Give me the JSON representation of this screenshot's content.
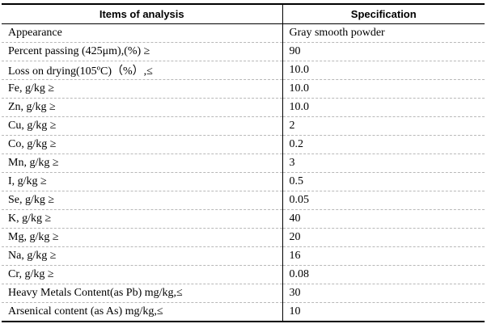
{
  "table": {
    "headers": {
      "item": "Items of analysis",
      "spec": "Specification"
    },
    "rows": [
      {
        "item": "Appearance",
        "spec": "Gray smooth powder"
      },
      {
        "item": "Percent passing (425μm),(%) ≥",
        "spec": "90"
      },
      {
        "item": "Loss on drying(105ºC)（%）,≤",
        "spec": "10.0"
      },
      {
        "item": "Fe, g/kg ≥",
        "spec": "10.0"
      },
      {
        "item": "Zn, g/kg ≥",
        "spec": "10.0"
      },
      {
        "item": "Cu, g/kg ≥",
        "spec": "2"
      },
      {
        "item": "Co, g/kg ≥",
        "spec": "0.2"
      },
      {
        "item": "Mn, g/kg ≥",
        "spec": "3"
      },
      {
        "item": "I,   g/kg ≥",
        "spec": "0.5"
      },
      {
        "item": "Se, g/kg ≥",
        "spec": "0.05"
      },
      {
        "item": "K, g/kg ≥",
        "spec": "40"
      },
      {
        "item": "Mg, g/kg ≥",
        "spec": "20"
      },
      {
        "item": "Na, g/kg ≥",
        "spec": "16"
      },
      {
        "item": "Cr, g/kg ≥",
        "spec": "0.08"
      },
      {
        "item": "Heavy Metals Content(as Pb) mg/kg,≤",
        "spec": "30"
      },
      {
        "item": "Arsenical content (as As) mg/kg,≤",
        "spec": "10"
      }
    ]
  }
}
